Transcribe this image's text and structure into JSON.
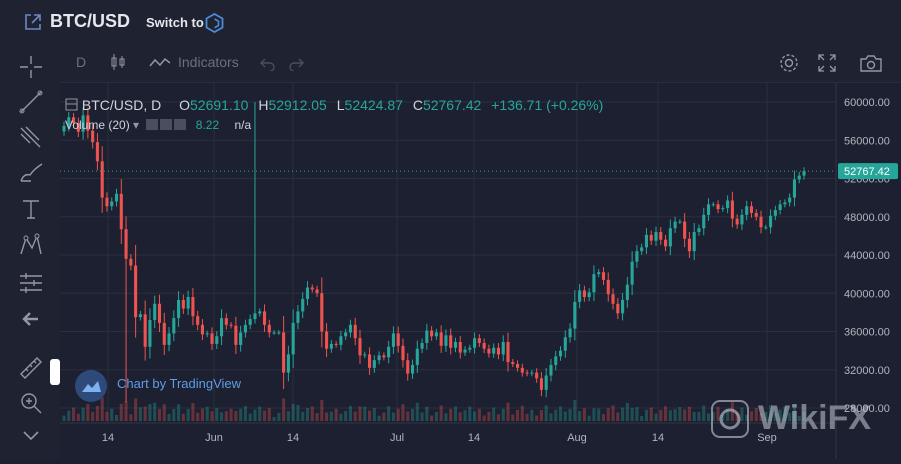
{
  "header": {
    "pair": "BTC/USD",
    "switch_label": "Switch to"
  },
  "toolbar": {
    "interval": "D",
    "indicators_label": "Indicators"
  },
  "legend": {
    "symbol": "BTC/USD, D",
    "open_label": "O",
    "open": "52691.10",
    "high_label": "H",
    "high": "52912.05",
    "low_label": "L",
    "low": "52424.87",
    "close_label": "C",
    "close": "52767.42",
    "change": "+136.71 (+0.26%)",
    "volume_label": "Volume (20)",
    "volume_value": "8.22",
    "volume_na": "n/a"
  },
  "watermark": {
    "tv_text": "Chart by TradingView",
    "brand": "WikiFX"
  },
  "colors": {
    "up": "#26a69a",
    "down": "#ef5350",
    "bg": "#1c2030",
    "grid": "#2a2e3d"
  },
  "chart_data": {
    "type": "candlestick",
    "y_ticks": [
      "60000.00",
      "56000.00",
      "52000.00",
      "48000.00",
      "44000.00",
      "40000.00",
      "36000.00",
      "32000.00",
      "28000.00"
    ],
    "y_range": [
      27000,
      61000
    ],
    "last_price_label": "52767.42",
    "x_ticks": [
      "14",
      "Jun",
      "14",
      "Jul",
      "14",
      "Aug",
      "14",
      "Sep"
    ],
    "closes": [
      57500,
      58400,
      57800,
      56900,
      58600,
      57000,
      55800,
      53800,
      50000,
      49100,
      49600,
      50400,
      46700,
      43600,
      42900,
      37500,
      37800,
      34400,
      37200,
      38900,
      36900,
      34600,
      35800,
      37400,
      39300,
      38400,
      39600,
      37600,
      36700,
      35700,
      35800,
      34700,
      35500,
      37400,
      36700,
      36600,
      34600,
      35900,
      36700,
      37300,
      37900,
      38100,
      36700,
      35900,
      35900,
      35900,
      31700,
      33600,
      36900,
      38100,
      39400,
      40600,
      40400,
      40000,
      36000,
      34200,
      34700,
      34600,
      35500,
      35900,
      36700,
      35300,
      33500,
      33600,
      32200,
      33000,
      33500,
      33300,
      34400,
      35800,
      34500,
      33000,
      31600,
      32500,
      34200,
      34800,
      36100,
      35500,
      35900,
      34500,
      35600,
      34300,
      34900,
      33800,
      34100,
      34300,
      35300,
      34800,
      34200,
      33700,
      34300,
      33600,
      34900,
      32800,
      32600,
      32200,
      31700,
      31600,
      31700,
      31100,
      29900,
      31400,
      32500,
      33400,
      34000,
      35400,
      36300,
      39100,
      40300,
      39600,
      40100,
      42000,
      42200,
      41400,
      39900,
      38900,
      37900,
      39300,
      40900,
      43300,
      44400,
      44800,
      46100,
      45500,
      46400,
      45600,
      44900,
      46800,
      47500,
      47500,
      45700,
      44400,
      46400,
      46800,
      48200,
      49300,
      49300,
      48800,
      48900,
      49700,
      47800,
      47200,
      48200,
      49100,
      48400,
      48000,
      46900,
      46900,
      48100,
      48700,
      49300,
      49500,
      50000,
      51900,
      52300,
      52767
    ]
  }
}
